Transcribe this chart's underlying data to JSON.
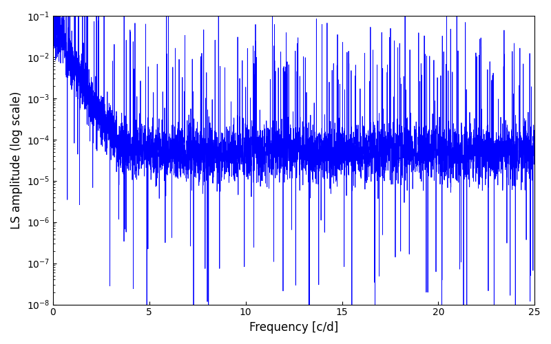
{
  "xlabel": "Frequency [c/d]",
  "ylabel": "LS amplitude (log scale)",
  "line_color": "#0000ff",
  "xlim": [
    0,
    25
  ],
  "ylim_log": [
    -8,
    -1
  ],
  "freq_min": 0.0,
  "freq_max": 25.0,
  "n_points": 5000,
  "seed": 7,
  "background_color": "#ffffff",
  "figsize": [
    8.0,
    5.0
  ],
  "dpi": 100,
  "line_width": 0.6
}
